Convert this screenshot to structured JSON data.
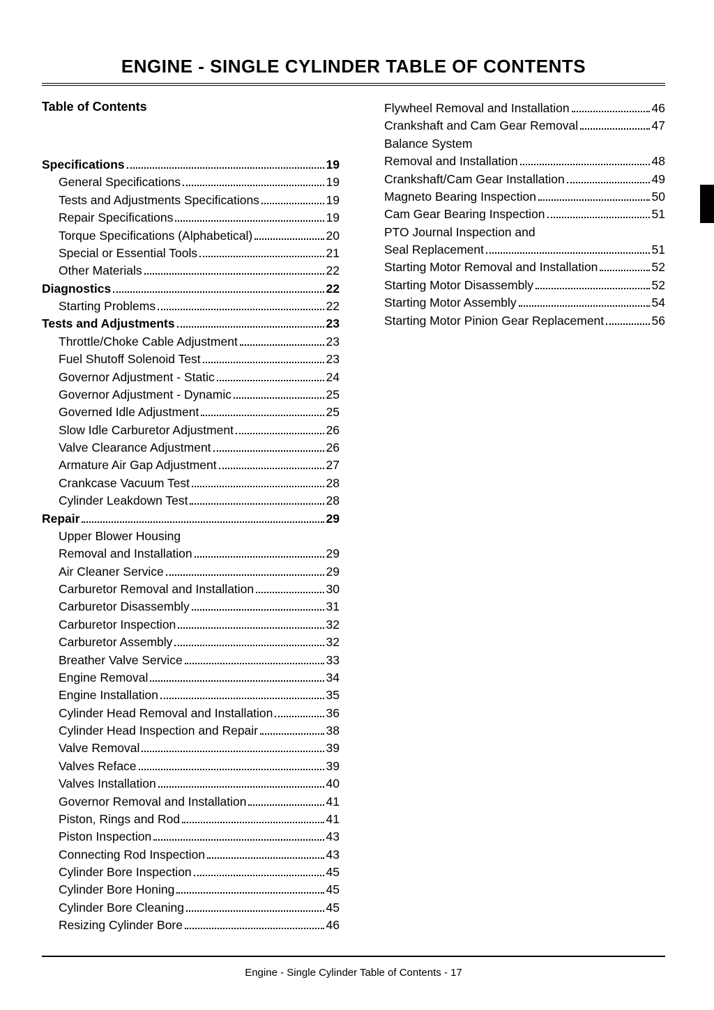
{
  "header_title": "ENGINE - SINGLE CYLINDER   TABLE OF CONTENTS",
  "subheading": "Table of Contents",
  "footer": "Engine - Single Cylinder   Table of Contents  - 17",
  "colors": {
    "text": "#000000",
    "background": "#ffffff",
    "rule": "#000000"
  },
  "typography": {
    "title_fontsize": 26,
    "body_fontsize": 17.5,
    "font_family": "Arial"
  },
  "left": [
    {
      "label": "Specifications",
      "page": "19",
      "level": "section"
    },
    {
      "label": "General Specifications",
      "page": "19",
      "level": "sub"
    },
    {
      "label": "Tests and Adjustments Specifications",
      "page": "19",
      "level": "sub"
    },
    {
      "label": "Repair Specifications",
      "page": "19",
      "level": "sub"
    },
    {
      "label": "Torque Specifications (Alphabetical)",
      "page": "20",
      "level": "sub"
    },
    {
      "label": "Special or Essential Tools",
      "page": "21",
      "level": "sub"
    },
    {
      "label": "Other Materials",
      "page": "22",
      "level": "sub"
    },
    {
      "label": "Diagnostics",
      "page": "22",
      "level": "section"
    },
    {
      "label": "Starting Problems",
      "page": "22",
      "level": "sub"
    },
    {
      "label": "Tests and Adjustments",
      "page": "23",
      "level": "section"
    },
    {
      "label": "Throttle/Choke Cable Adjustment",
      "page": "23",
      "level": "sub"
    },
    {
      "label": "Fuel Shutoff Solenoid Test",
      "page": "23",
      "level": "sub"
    },
    {
      "label": "Governor Adjustment - Static",
      "page": "24",
      "level": "sub"
    },
    {
      "label": "Governor Adjustment - Dynamic",
      "page": "25",
      "level": "sub"
    },
    {
      "label": "Governed Idle Adjustment",
      "page": "25",
      "level": "sub"
    },
    {
      "label": "Slow Idle Carburetor Adjustment",
      "page": "26",
      "level": "sub"
    },
    {
      "label": "Valve Clearance Adjustment",
      "page": "26",
      "level": "sub"
    },
    {
      "label": "Armature Air Gap Adjustment",
      "page": "27",
      "level": "sub"
    },
    {
      "label": "Crankcase Vacuum Test",
      "page": "28",
      "level": "sub"
    },
    {
      "label": "Cylinder Leakdown Test",
      "page": "28",
      "level": "sub"
    },
    {
      "label": "Repair",
      "page": "29",
      "level": "section"
    },
    {
      "label": "Upper Blower Housing",
      "page": "",
      "level": "sub"
    },
    {
      "label": "Removal and Installation",
      "page": "29",
      "level": "sub"
    },
    {
      "label": "Air Cleaner Service",
      "page": "29",
      "level": "sub"
    },
    {
      "label": "Carburetor Removal and Installation",
      "page": "30",
      "level": "sub"
    },
    {
      "label": "Carburetor Disassembly",
      "page": "31",
      "level": "sub"
    },
    {
      "label": "Carburetor Inspection",
      "page": "32",
      "level": "sub"
    },
    {
      "label": "Carburetor Assembly",
      "page": "32",
      "level": "sub"
    },
    {
      "label": "Breather Valve Service",
      "page": "33",
      "level": "sub"
    },
    {
      "label": "Engine Removal",
      "page": "34",
      "level": "sub"
    },
    {
      "label": "Engine Installation",
      "page": "35",
      "level": "sub"
    },
    {
      "label": "Cylinder Head Removal and Installation",
      "page": "36",
      "level": "sub"
    },
    {
      "label": "Cylinder Head Inspection and Repair",
      "page": "38",
      "level": "sub"
    },
    {
      "label": "Valve Removal",
      "page": "39",
      "level": "sub"
    },
    {
      "label": "Valves Reface",
      "page": "39",
      "level": "sub"
    },
    {
      "label": "Valves Installation",
      "page": "40",
      "level": "sub"
    },
    {
      "label": "Governor Removal and Installation",
      "page": "41",
      "level": "sub"
    },
    {
      "label": "Piston, Rings and Rod",
      "page": "41",
      "level": "sub"
    },
    {
      "label": "Piston Inspection",
      "page": "43",
      "level": "sub"
    },
    {
      "label": "Connecting Rod Inspection",
      "page": "43",
      "level": "sub"
    },
    {
      "label": "Cylinder Bore Inspection",
      "page": "45",
      "level": "sub"
    },
    {
      "label": "Cylinder Bore Honing",
      "page": "45",
      "level": "sub"
    },
    {
      "label": "Cylinder Bore Cleaning",
      "page": "45",
      "level": "sub"
    },
    {
      "label": "Resizing Cylinder Bore",
      "page": "46",
      "level": "sub"
    }
  ],
  "right": [
    {
      "label": "Flywheel Removal and Installation",
      "page": "46",
      "level": "sub"
    },
    {
      "label": "Crankshaft and Cam Gear Removal",
      "page": "47",
      "level": "sub"
    },
    {
      "label": "Balance System",
      "page": "",
      "level": "sub"
    },
    {
      "label": "Removal and Installation",
      "page": "48",
      "level": "sub"
    },
    {
      "label": "Crankshaft/Cam Gear Installation",
      "page": "49",
      "level": "sub"
    },
    {
      "label": "Magneto Bearing Inspection",
      "page": "50",
      "level": "sub"
    },
    {
      "label": "Cam Gear Bearing Inspection",
      "page": "51",
      "level": "sub"
    },
    {
      "label": "PTO Journal Inspection and",
      "page": "",
      "level": "sub"
    },
    {
      "label": "Seal Replacement",
      "page": "51",
      "level": "sub"
    },
    {
      "label": "Starting Motor Removal and Installation",
      "page": "52",
      "level": "sub"
    },
    {
      "label": "Starting Motor Disassembly",
      "page": "52",
      "level": "sub"
    },
    {
      "label": "Starting Motor Assembly",
      "page": "54",
      "level": "sub"
    },
    {
      "label": "Starting Motor Pinion Gear Replacement",
      "page": "56",
      "level": "sub"
    }
  ]
}
